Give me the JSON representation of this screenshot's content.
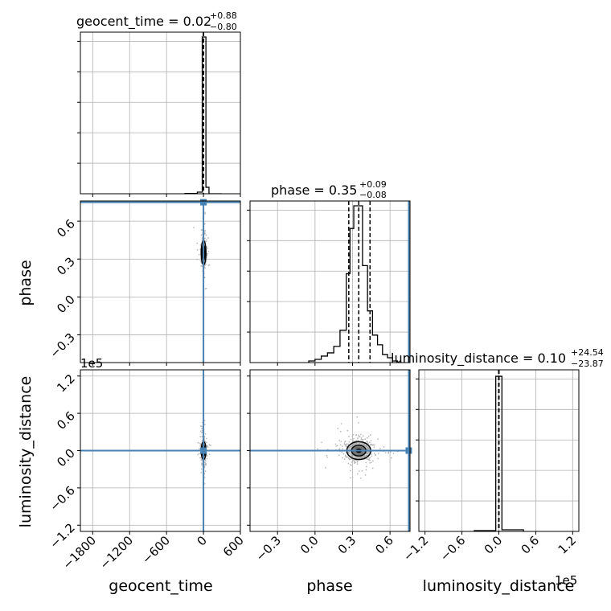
{
  "chart_data": {
    "type": "corner",
    "parameters": [
      "geocent_time",
      "phase",
      "luminosity_distance"
    ],
    "titles": {
      "geocent_time": {
        "label": "geocent_time = 0.02",
        "plus": "+0.88",
        "minus": "−0.80"
      },
      "phase": {
        "label": "phase = 0.35",
        "plus": "+0.09",
        "minus": "−0.08"
      },
      "luminosity_distance": {
        "label": "luminosity_distance = 0.10",
        "plus": "+24.54",
        "minus": "−23.87"
      }
    },
    "axis_labels": {
      "geocent_time": "geocent_time",
      "phase": "phase",
      "luminosity_distance": "luminosity_distance"
    },
    "offset_labels": {
      "luminosity_distance_y": "1e5",
      "luminosity_distance_x": "1e5"
    },
    "ranges": {
      "geocent_time": [
        -2000,
        600
      ],
      "phase": [
        -0.52,
        0.76
      ],
      "luminosity_distance": [
        -130000,
        130000
      ]
    },
    "ticks": {
      "geocent_time": {
        "values": [
          -1800,
          -1200,
          -600,
          0,
          600
        ],
        "labels": [
          "−1800",
          "−1200",
          "−600",
          "0",
          "600"
        ]
      },
      "phase": {
        "values": [
          -0.3,
          0.0,
          0.3,
          0.6
        ],
        "labels": [
          "−0.3",
          "0.0",
          "0.3",
          "0.6"
        ]
      },
      "luminosity_distance": {
        "values": [
          -120000,
          -60000,
          0,
          60000,
          120000
        ],
        "labels": [
          "−1.2",
          "−0.6",
          "0.0",
          "0.6",
          "1.2"
        ]
      }
    },
    "injection_truth": {
      "geocent_time": 0,
      "phase": 0.75,
      "luminosity_distance": 0
    },
    "quantiles": {
      "geocent_time": [
        -0.78,
        0.02,
        0.9
      ],
      "phase": [
        0.27,
        0.35,
        0.44
      ],
      "luminosity_distance": [
        -23.77,
        0.1,
        24.64
      ]
    },
    "hist_geocent_time": {
      "edges": [
        -300,
        -100,
        -20,
        20,
        40,
        90,
        300
      ],
      "counts": [
        0.002,
        0.01,
        0.97,
        0.97,
        0.04,
        0.0
      ]
    },
    "hist_phase": {
      "edges": [
        -0.05,
        0.0,
        0.05,
        0.1,
        0.15,
        0.2,
        0.25,
        0.28,
        0.31,
        0.35,
        0.38,
        0.42,
        0.46,
        0.5,
        0.54,
        0.58,
        0.62,
        0.66,
        0.7
      ],
      "counts": [
        0.01,
        0.02,
        0.04,
        0.06,
        0.1,
        0.2,
        0.55,
        0.83,
        0.97,
        0.97,
        0.6,
        0.32,
        0.17,
        0.11,
        0.05,
        0.03,
        0.01,
        0.0
      ]
    },
    "hist_luminosity_distance": {
      "edges": [
        -40000,
        -5000,
        -1500,
        2000,
        5000,
        40000
      ],
      "counts": [
        0.005,
        0.96,
        0.96,
        0.96,
        0.01
      ]
    },
    "grid": true,
    "colors": {
      "truth": "#4682b4",
      "points": "#bbbbbb",
      "lines": "#000000"
    }
  }
}
